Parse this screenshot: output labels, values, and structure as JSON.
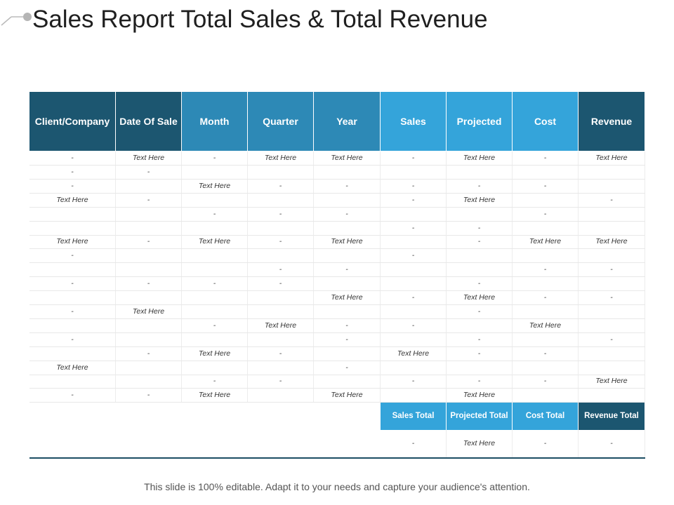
{
  "title": "Sales Report Total Sales & Total Revenue",
  "colors": {
    "dark": "#1c5670",
    "mid": "#2d89b6",
    "light": "#34a4da"
  },
  "columns": [
    "Client/Company",
    "Date Of Sale",
    "Month",
    "Quarter",
    "Year",
    "Sales",
    "Projected",
    "Cost",
    "Revenue"
  ],
  "rows": [
    [
      "-",
      "Text Here",
      "-",
      "Text Here",
      "Text Here",
      "-",
      "Text Here",
      "-",
      "Text Here"
    ],
    [
      "-",
      "-",
      "",
      "",
      "",
      "",
      "",
      "",
      ""
    ],
    [
      "-",
      "",
      "Text Here",
      "-",
      "-",
      "-",
      "-",
      "-",
      ""
    ],
    [
      "Text Here",
      "-",
      "",
      "",
      "",
      "-",
      "Text Here",
      "",
      "-"
    ],
    [
      "",
      "",
      "-",
      "-",
      "-",
      "",
      "",
      "-",
      ""
    ],
    [
      "",
      "",
      "",
      "",
      "",
      "-",
      "-",
      "",
      ""
    ],
    [
      "Text Here",
      "-",
      "Text Here",
      "-",
      "Text Here",
      "",
      "-",
      "Text Here",
      "Text Here"
    ],
    [
      "-",
      "",
      "",
      "",
      "",
      "-",
      "",
      "",
      ""
    ],
    [
      "",
      "",
      "",
      "-",
      "-",
      "",
      "",
      "-",
      "-"
    ],
    [
      "-",
      "-",
      "-",
      "-",
      "",
      "",
      "-",
      "",
      ""
    ],
    [
      "",
      "",
      "",
      "",
      "Text Here",
      "-",
      "Text Here",
      "-",
      "-"
    ],
    [
      "-",
      "Text Here",
      "",
      "",
      "",
      "",
      "-",
      "",
      ""
    ],
    [
      "",
      "",
      "-",
      "Text Here",
      "-",
      "-",
      "",
      "Text Here",
      ""
    ],
    [
      "-",
      "",
      "",
      "",
      "-",
      "",
      "-",
      "",
      "-"
    ],
    [
      "",
      "-",
      "Text Here",
      "-",
      "",
      "Text Here",
      "-",
      "-",
      ""
    ],
    [
      "Text Here",
      "",
      "",
      "",
      "-",
      "",
      "",
      "",
      ""
    ],
    [
      "",
      "",
      "-",
      "-",
      "",
      "-",
      "-",
      "-",
      "Text Here"
    ],
    [
      "-",
      "-",
      "Text Here",
      "",
      "Text Here",
      "",
      "Text Here",
      "",
      ""
    ]
  ],
  "totals": {
    "labels": [
      "Sales Total",
      "Projected Total",
      "Cost Total",
      "Revenue Total"
    ],
    "values": [
      "-",
      "Text Here",
      "-",
      "-"
    ]
  },
  "footer": "This slide is 100% editable. Adapt it to your needs and capture your audience's attention."
}
